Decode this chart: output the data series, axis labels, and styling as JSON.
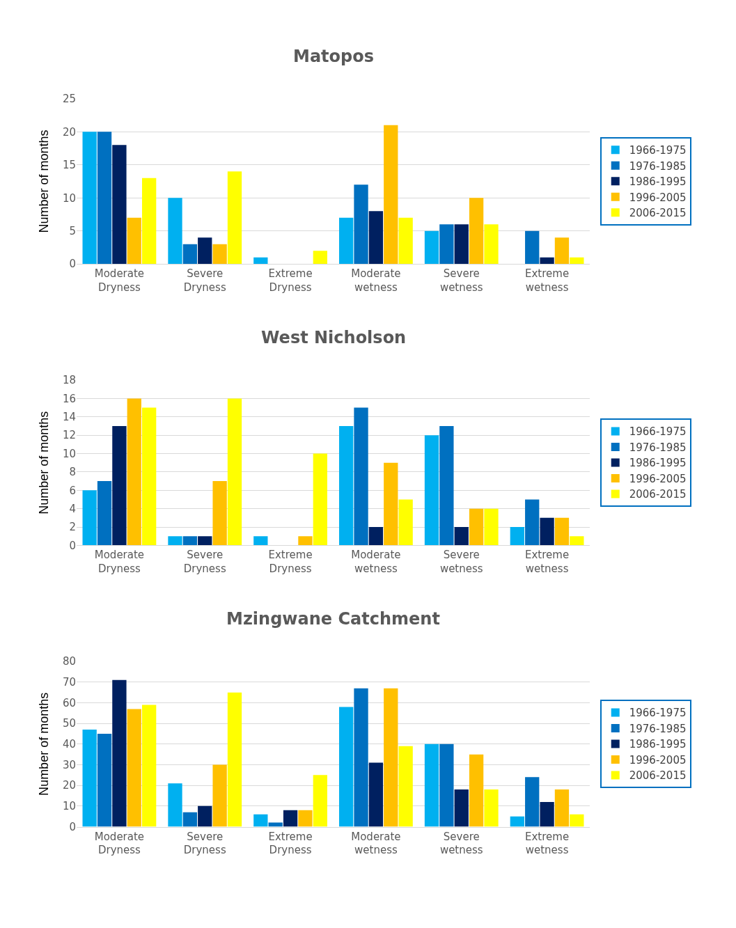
{
  "chart_data": [
    {
      "type": "bar",
      "title": "Matopos",
      "ylabel": "Number of months",
      "categories": [
        "Moderate Dryness",
        "Severe Dryness",
        "Extreme Dryness",
        "Moderate wetness",
        "Severe wetness",
        "Extreme wetness"
      ],
      "series": [
        {
          "name": "1966-1975",
          "color": "#00b0f0",
          "values": [
            20,
            10,
            1,
            7,
            5,
            0
          ]
        },
        {
          "name": "1976-1985",
          "color": "#0070c0",
          "values": [
            20,
            3,
            0,
            12,
            6,
            5
          ]
        },
        {
          "name": "1986-1995",
          "color": "#002060",
          "values": [
            18,
            4,
            0,
            8,
            6,
            1
          ]
        },
        {
          "name": "1996-2005",
          "color": "#ffc000",
          "values": [
            7,
            3,
            0,
            21,
            10,
            4
          ]
        },
        {
          "name": "2006-2015",
          "color": "#ffff00",
          "values": [
            13,
            14,
            2,
            7,
            6,
            1
          ]
        }
      ],
      "ylim": [
        0,
        25
      ],
      "yticks": [
        0,
        5,
        10,
        15,
        20,
        25
      ],
      "grid": "y",
      "legend": "right"
    },
    {
      "type": "bar",
      "title": "West Nicholson",
      "ylabel": "Number of months",
      "categories": [
        "Moderate Dryness",
        "Severe Dryness",
        "Extreme Dryness",
        "Moderate wetness",
        "Severe wetness",
        "Extreme wetness"
      ],
      "series": [
        {
          "name": "1966-1975",
          "color": "#00b0f0",
          "values": [
            6,
            1,
            1,
            13,
            12,
            2
          ]
        },
        {
          "name": "1976-1985",
          "color": "#0070c0",
          "values": [
            7,
            1,
            0,
            15,
            13,
            5
          ]
        },
        {
          "name": "1986-1995",
          "color": "#002060",
          "values": [
            13,
            1,
            0,
            2,
            2,
            3
          ]
        },
        {
          "name": "1996-2005",
          "color": "#ffc000",
          "values": [
            16,
            7,
            1,
            9,
            4,
            3
          ]
        },
        {
          "name": "2006-2015",
          "color": "#ffff00",
          "values": [
            15,
            16,
            10,
            5,
            4,
            1
          ]
        }
      ],
      "ylim": [
        0,
        18
      ],
      "yticks": [
        0,
        2,
        4,
        6,
        8,
        10,
        12,
        14,
        16,
        18
      ],
      "grid": "y",
      "legend": "right"
    },
    {
      "type": "bar",
      "title": "Mzingwane Catchment",
      "ylabel": "Number of months",
      "categories": [
        "Moderate Dryness",
        "Severe Dryness",
        "Extreme Dryness",
        "Moderate wetness",
        "Severe wetness",
        "Extreme wetness"
      ],
      "series": [
        {
          "name": "1966-1975",
          "color": "#00b0f0",
          "values": [
            47,
            21,
            6,
            58,
            40,
            5
          ]
        },
        {
          "name": "1976-1985",
          "color": "#0070c0",
          "values": [
            45,
            7,
            2,
            67,
            40,
            24
          ]
        },
        {
          "name": "1986-1995",
          "color": "#002060",
          "values": [
            71,
            10,
            8,
            31,
            18,
            12
          ]
        },
        {
          "name": "1996-2005",
          "color": "#ffc000",
          "values": [
            57,
            30,
            8,
            67,
            35,
            18
          ]
        },
        {
          "name": "2006-2015",
          "color": "#ffff00",
          "values": [
            59,
            65,
            25,
            39,
            18,
            6
          ]
        }
      ],
      "ylim": [
        0,
        80
      ],
      "yticks": [
        0,
        10,
        20,
        30,
        40,
        50,
        60,
        70,
        80
      ],
      "grid": "y",
      "legend": "right"
    }
  ]
}
